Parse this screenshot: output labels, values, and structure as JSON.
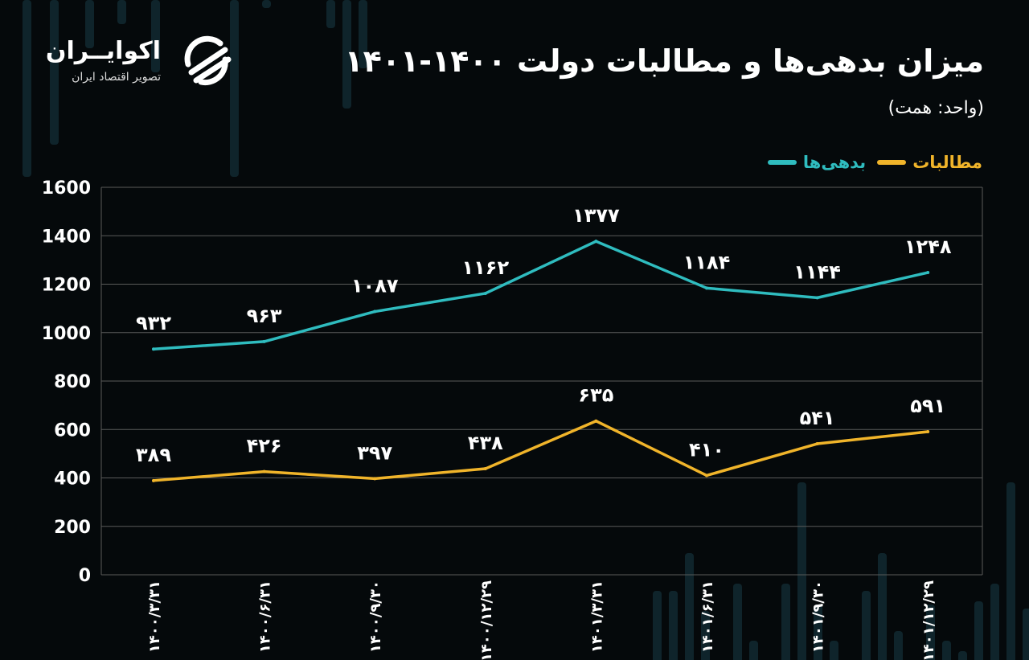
{
  "brand": {
    "name": "اکوایــران",
    "tagline": "تصویر اقتصاد ایران",
    "logo_icon": "ecoiran-logo-icon"
  },
  "header": {
    "title": "میزان بدهی‌ها و مطالبات دولت ۱۴۰۰-۱۴۰۱",
    "unit": "(واحد: همت)"
  },
  "colors": {
    "background": "#05090b",
    "debts": "#2fbcbf",
    "claims": "#f0b42a",
    "grid": "#5a5a5a",
    "bg_bars": "#0f242b"
  },
  "chart_data": {
    "type": "line",
    "title": "میزان بدهی‌ها و مطالبات دولت ۱۴۰۰-۱۴۰۱",
    "subtitle": "(واحد: همت)",
    "categories": [
      "۱۴۰۰/۳/۳۱",
      "۱۴۰۰/۶/۳۱",
      "۱۴۰۰/۹/۳۰",
      "۱۴۰۰/۱۲/۲۹",
      "۱۴۰۱/۳/۳۱",
      "۱۴۰۱/۶/۳۱",
      "۱۴۰۱/۹/۳۰",
      "۱۴۰۱/۱۲/۲۹"
    ],
    "series": [
      {
        "name": "بدهی‌ها",
        "color": "#2fbcbf",
        "values": [
          932,
          963,
          1087,
          1162,
          1377,
          1184,
          1144,
          1248
        ],
        "labels": [
          "۹۳۲",
          "۹۶۳",
          "۱۰۸۷",
          "۱۱۶۲",
          "۱۳۷۷",
          "۱۱۸۴",
          "۱۱۴۴",
          "۱۲۴۸"
        ]
      },
      {
        "name": "مطالبات",
        "color": "#f0b42a",
        "values": [
          389,
          426,
          397,
          438,
          635,
          410,
          541,
          591
        ],
        "labels": [
          "۳۸۹",
          "۴۲۶",
          "۳۹۷",
          "۴۳۸",
          "۶۳۵",
          "۴۱۰",
          "۵۴۱",
          "۵۹۱"
        ]
      }
    ],
    "ylim": [
      0,
      1600
    ],
    "yticks": [
      0,
      200,
      400,
      600,
      800,
      1000,
      1200,
      1400,
      1600
    ],
    "ytick_labels": [
      "0",
      "200",
      "400",
      "600",
      "800",
      "1000",
      "1200",
      "1400",
      "1600"
    ],
    "grid": true,
    "legend_position": "top-right"
  }
}
